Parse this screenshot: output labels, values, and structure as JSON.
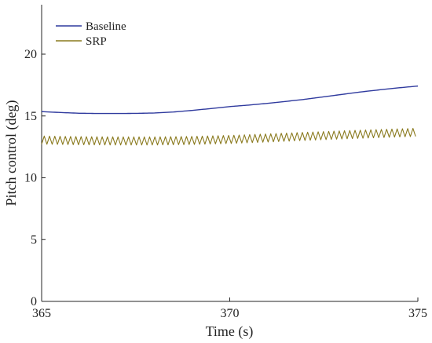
{
  "chart_data": {
    "type": "line",
    "title": "",
    "xlabel": "Time (s)",
    "ylabel": "Pitch control (deg)",
    "xlim": [
      365,
      375
    ],
    "ylim": [
      0,
      24
    ],
    "xticks": [
      365,
      370,
      375
    ],
    "yticks": [
      0,
      5,
      10,
      15,
      20
    ],
    "grid": false,
    "legend_position": "top-left",
    "series": [
      {
        "name": "Baseline",
        "color": "#2f3a9e",
        "x": [
          365,
          365.5,
          366,
          366.5,
          367,
          367.5,
          368,
          368.5,
          369,
          369.5,
          370,
          370.5,
          371,
          371.5,
          372,
          372.5,
          373,
          373.5,
          374,
          374.5,
          375
        ],
        "y": [
          15.35,
          15.28,
          15.22,
          15.2,
          15.2,
          15.21,
          15.24,
          15.32,
          15.45,
          15.6,
          15.76,
          15.88,
          16.02,
          16.18,
          16.35,
          16.55,
          16.75,
          16.95,
          17.12,
          17.28,
          17.42
        ]
      },
      {
        "name": "SRP",
        "color": "#8a7a1e",
        "period": 0.14,
        "amplitude": 0.33,
        "x": [
          365,
          366,
          367,
          368,
          369,
          370,
          371,
          372,
          373,
          374,
          375
        ],
        "y": [
          13.05,
          13.0,
          12.98,
          12.98,
          13.02,
          13.1,
          13.22,
          13.35,
          13.47,
          13.58,
          13.68
        ]
      }
    ]
  }
}
